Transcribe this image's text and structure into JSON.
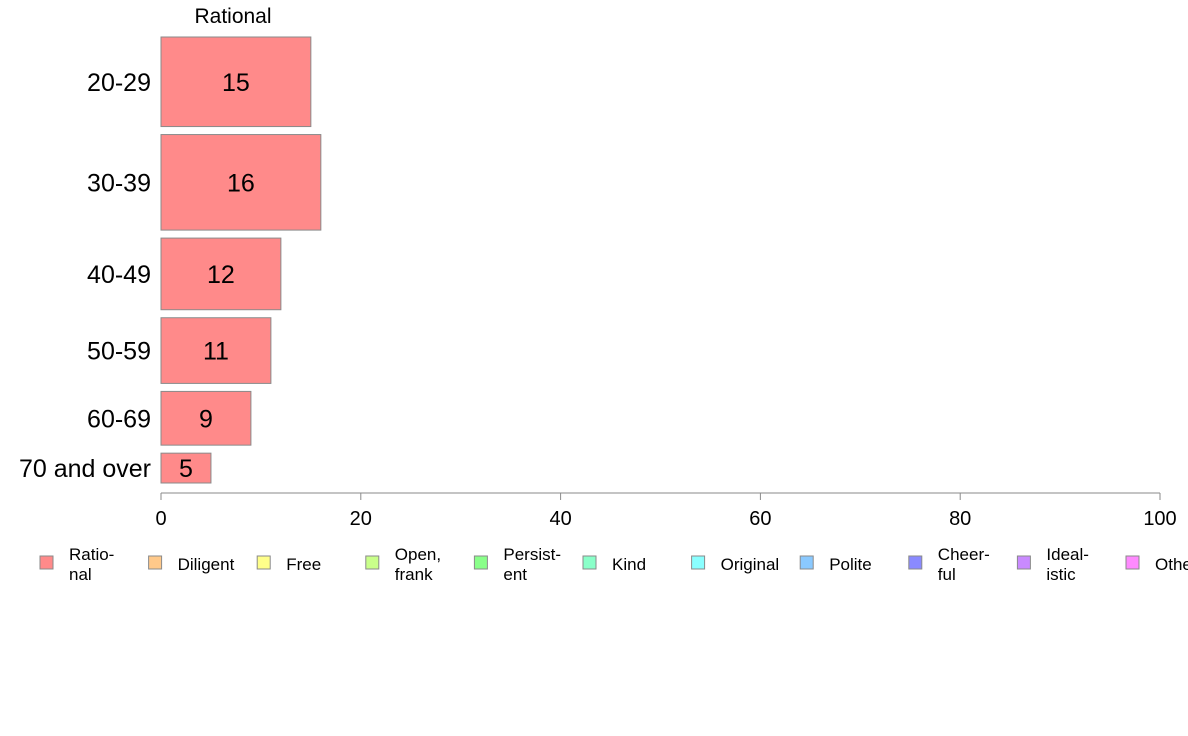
{
  "chart_data": {
    "type": "bar",
    "orientation": "horizontal",
    "title": "",
    "panel_title": "Rational",
    "categories": [
      "20-29",
      "30-39",
      "40-49",
      "50-59",
      "60-69",
      "70 and over"
    ],
    "series": [
      {
        "name": "Rational",
        "values": [
          15,
          16,
          12,
          11,
          9,
          5
        ],
        "color": "#ff8a8a"
      }
    ],
    "xlim": [
      0,
      100
    ],
    "xticks": [
      0,
      20,
      40,
      60,
      80,
      100
    ],
    "grid": false,
    "legend_position": "bottom",
    "legend": [
      {
        "lines": [
          "Ratio-",
          "nal"
        ],
        "color": "#ff8a8a"
      },
      {
        "lines": [
          "Diligent"
        ],
        "color": "#ffc98a"
      },
      {
        "lines": [
          "Free"
        ],
        "color": "#ffff8a"
      },
      {
        "lines": [
          "Open,",
          "frank"
        ],
        "color": "#c9ff8a"
      },
      {
        "lines": [
          "Persist-",
          "ent"
        ],
        "color": "#8aff8a"
      },
      {
        "lines": [
          "Kind"
        ],
        "color": "#8affc9"
      },
      {
        "lines": [
          "Original"
        ],
        "color": "#8affff"
      },
      {
        "lines": [
          "Polite"
        ],
        "color": "#8ac9ff"
      },
      {
        "lines": [
          "Cheer-",
          "ful"
        ],
        "color": "#8a8aff"
      },
      {
        "lines": [
          "Ideal-",
          "istic"
        ],
        "color": "#c98aff"
      },
      {
        "lines": [
          "Other"
        ],
        "color": "#ff8aff"
      }
    ]
  }
}
